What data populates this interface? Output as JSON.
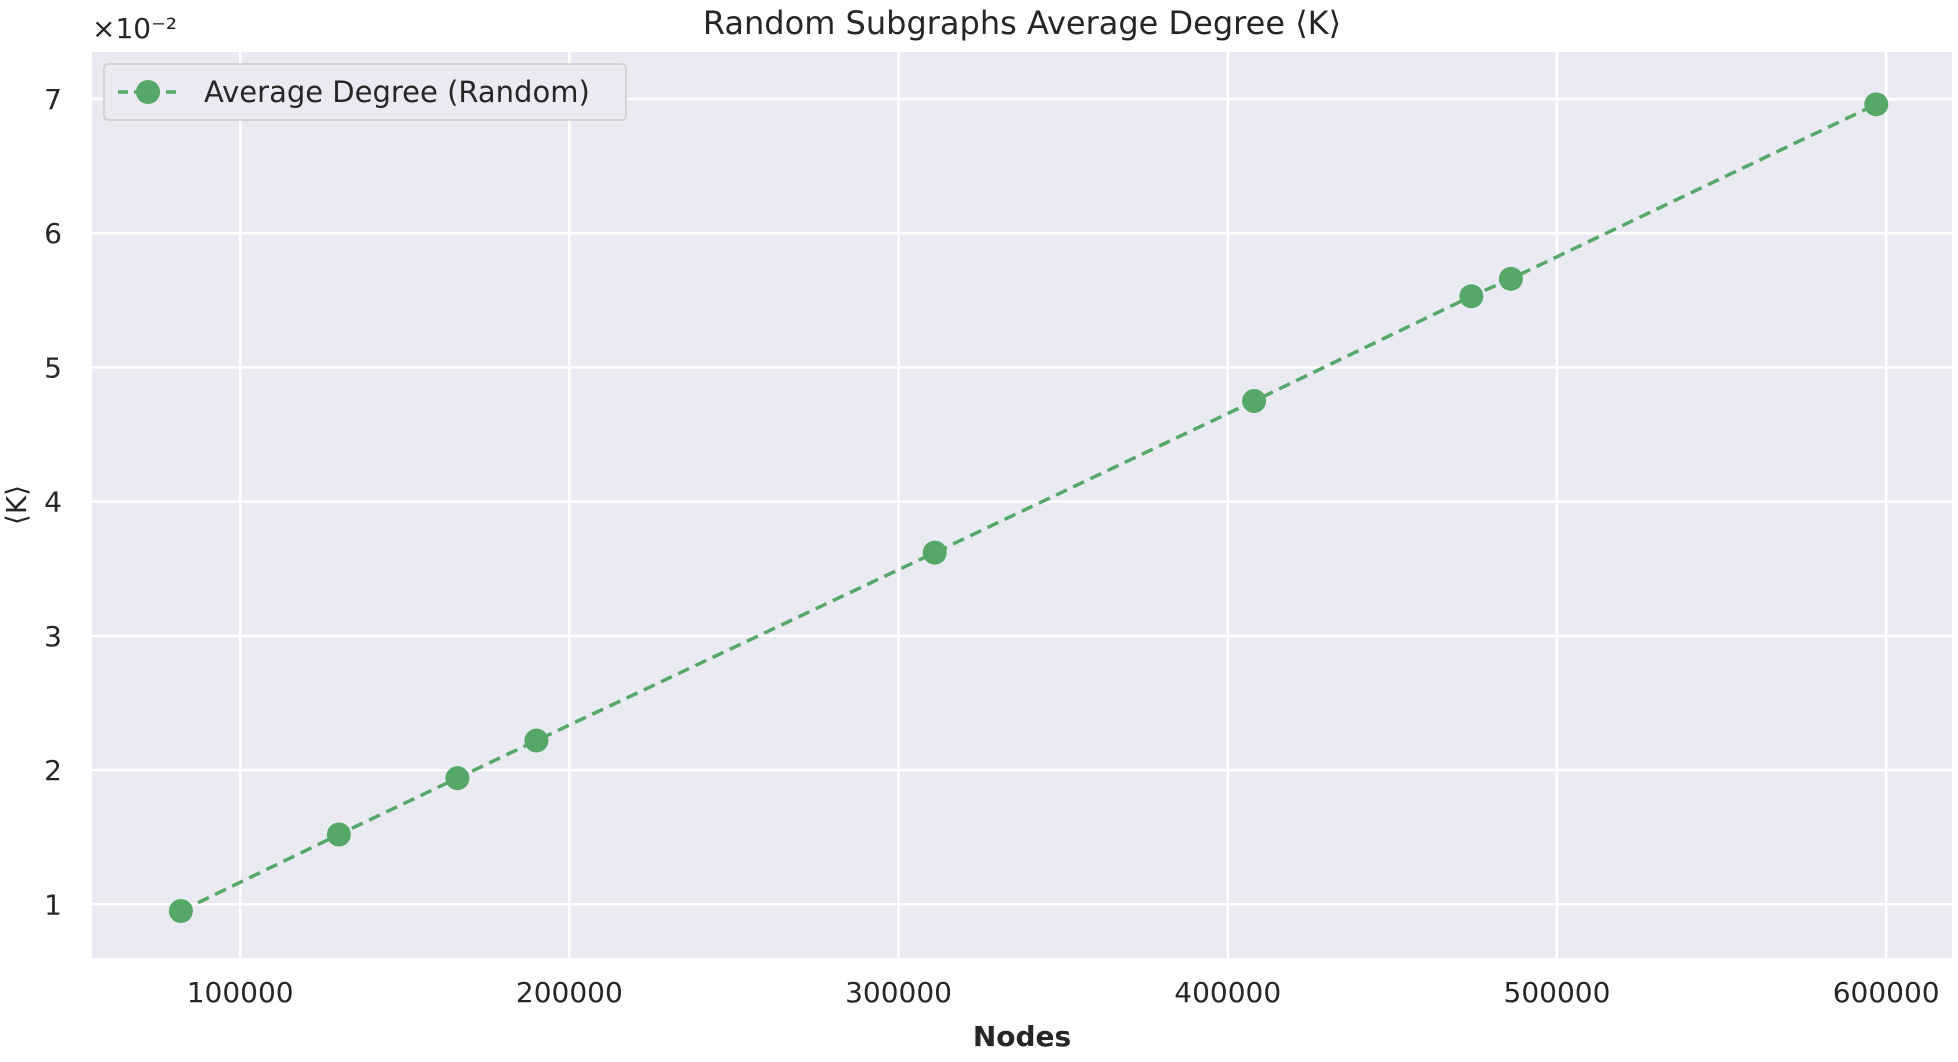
{
  "chart_data": {
    "type": "line",
    "title": "Random Subgraphs Average Degree ⟨K⟩",
    "xlabel": "Nodes",
    "ylabel": "⟨K⟩",
    "y_scale_label": "×10⁻²",
    "xlim": [
      55000,
      620000
    ],
    "ylim": [
      0.6,
      7.35
    ],
    "x_ticks": [
      100000,
      200000,
      300000,
      400000,
      500000,
      600000
    ],
    "x_tick_labels": [
      "100000",
      "200000",
      "300000",
      "400000",
      "500000",
      "600000"
    ],
    "y_ticks": [
      1,
      2,
      3,
      4,
      5,
      6,
      7
    ],
    "y_tick_labels": [
      "1",
      "2",
      "3",
      "4",
      "5",
      "6",
      "7"
    ],
    "grid": true,
    "legend_position": "upper-left",
    "series": [
      {
        "name": "Average Degree (Random)",
        "color": "#55a868",
        "line_style": "dashed",
        "marker": "circle",
        "x": [
          82000,
          130000,
          166000,
          190000,
          311000,
          408000,
          474000,
          486000,
          597000
        ],
        "y": [
          0.95,
          1.52,
          1.94,
          2.22,
          3.62,
          4.75,
          5.53,
          5.66,
          6.96
        ]
      }
    ]
  }
}
